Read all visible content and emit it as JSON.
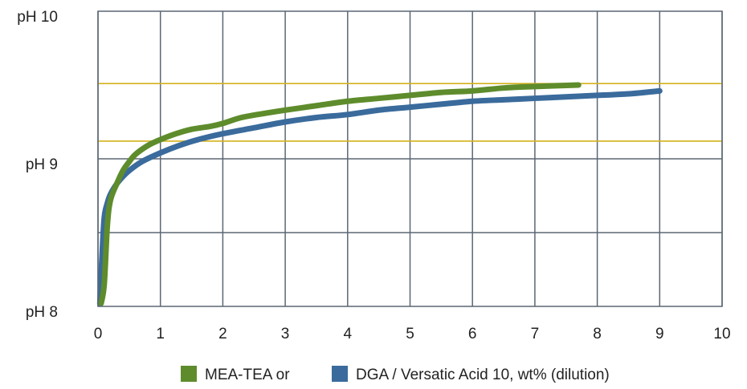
{
  "chart_data": {
    "type": "line",
    "xlim": [
      0,
      10
    ],
    "ylim": [
      8,
      10
    ],
    "x_ticks": [
      0,
      1,
      2,
      3,
      4,
      5,
      6,
      7,
      8,
      9,
      10
    ],
    "x_tick_labels": [
      "0",
      "1",
      "2",
      "3",
      "4",
      "5",
      "6",
      "7",
      "8",
      "9",
      "10"
    ],
    "y_ticks": [
      8,
      9,
      10
    ],
    "y_tick_labels": [
      "pH 8",
      "pH 9",
      "pH 10"
    ],
    "y_gridlines": [
      8.5,
      9.0
    ],
    "reference_lines": [
      {
        "y": 9.12,
        "color": "#d4b21c"
      },
      {
        "y": 9.51,
        "color": "#d4b21c"
      }
    ],
    "grid": true,
    "legend_position": "bottom",
    "series": [
      {
        "name": "MEA-TEA or",
        "color": "#5e8c2c",
        "x": [
          0.05,
          0.1,
          0.15,
          0.2,
          0.3,
          0.4,
          0.5,
          0.6,
          0.8,
          1.0,
          1.25,
          1.5,
          1.8,
          2.0,
          2.3,
          2.7,
          3.0,
          3.5,
          4.0,
          4.5,
          5.0,
          5.5,
          6.0,
          6.5,
          7.0,
          7.7
        ],
        "y": [
          8.02,
          8.15,
          8.55,
          8.72,
          8.83,
          8.92,
          8.98,
          9.03,
          9.09,
          9.13,
          9.17,
          9.2,
          9.22,
          9.24,
          9.28,
          9.31,
          9.33,
          9.36,
          9.39,
          9.41,
          9.43,
          9.45,
          9.46,
          9.48,
          9.49,
          9.5
        ]
      },
      {
        "name": "DGA / Versatic Acid 10, wt% (dilution)",
        "color": "#3a6b9c",
        "x": [
          0.03,
          0.06,
          0.1,
          0.15,
          0.2,
          0.3,
          0.4,
          0.5,
          0.7,
          1.0,
          1.3,
          1.6,
          2.0,
          2.5,
          3.0,
          3.5,
          4.0,
          4.5,
          5.0,
          5.5,
          6.0,
          6.5,
          7.0,
          7.5,
          8.0,
          8.5,
          9.0
        ],
        "y": [
          8.02,
          8.3,
          8.6,
          8.7,
          8.76,
          8.83,
          8.88,
          8.92,
          8.98,
          9.04,
          9.09,
          9.13,
          9.17,
          9.21,
          9.25,
          9.28,
          9.3,
          9.33,
          9.35,
          9.37,
          9.39,
          9.4,
          9.41,
          9.42,
          9.43,
          9.44,
          9.46
        ]
      }
    ]
  }
}
